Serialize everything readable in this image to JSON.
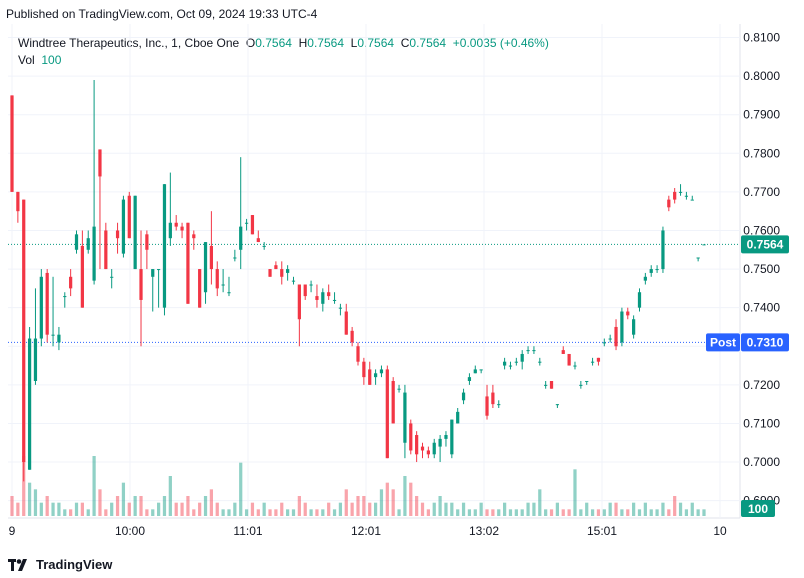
{
  "publish_line": "Published on TradingView.com, Oct 09, 2024 19:33 UTC-4",
  "legend": {
    "symbol": "Windtree Therapeutics, Inc., 1, Cboe One",
    "o_label": "O",
    "o_value": "0.7564",
    "h_label": "H",
    "h_value": "0.7564",
    "l_label": "L",
    "l_value": "0.7564",
    "c_label": "C",
    "c_value": "0.7564",
    "change": "+0.0035 (+0.46%)",
    "vol_label": "Vol",
    "vol_value": "100"
  },
  "footer": {
    "brand": "TradingView"
  },
  "colors": {
    "up": "#089981",
    "down": "#f23645",
    "post": "#2962ff",
    "grid": "#f0f3fa",
    "axis_text": "#131722"
  },
  "chart_data": {
    "type": "candlestick",
    "interval": "1 minute",
    "y_axis": {
      "ticks": [
        "0.8100",
        "0.8000",
        "0.7900",
        "0.7800",
        "0.7700",
        "0.7600",
        "0.7500",
        "0.7400",
        "0.7300",
        "0.7200",
        "0.7100",
        "0.7000",
        "0.6900"
      ],
      "ylim": [
        0.6855,
        0.8135
      ]
    },
    "x_axis": {
      "ticks": [
        "9",
        "10:00",
        "11:01",
        "12:01",
        "13:02",
        "15:01",
        "10"
      ]
    },
    "price_labels": [
      {
        "label": "",
        "value": "0.7564",
        "price": 0.7564,
        "color": "#089981"
      },
      {
        "label": "Post",
        "value": "0.7310",
        "price": 0.731,
        "color": "#2962ff"
      }
    ],
    "volume_label": "100",
    "candles": [
      {
        "o": 0.795,
        "h": 0.795,
        "l": 0.77,
        "c": 0.77
      },
      {
        "o": 0.77,
        "h": 0.77,
        "l": 0.762,
        "c": 0.765
      },
      {
        "o": 0.768,
        "h": 0.768,
        "l": 0.695,
        "c": 0.7
      },
      {
        "o": 0.698,
        "h": 0.735,
        "l": 0.698,
        "c": 0.732
      },
      {
        "o": 0.721,
        "h": 0.745,
        "l": 0.72,
        "c": 0.732
      },
      {
        "o": 0.732,
        "h": 0.75,
        "l": 0.73,
        "c": 0.748
      },
      {
        "o": 0.749,
        "h": 0.75,
        "l": 0.731,
        "c": 0.733
      },
      {
        "o": 0.733,
        "h": 0.748,
        "l": 0.73,
        "c": 0.733
      },
      {
        "o": 0.731,
        "h": 0.735,
        "l": 0.729,
        "c": 0.733
      },
      {
        "o": 0.743,
        "h": 0.744,
        "l": 0.74,
        "c": 0.743
      },
      {
        "o": 0.748,
        "h": 0.75,
        "l": 0.743,
        "c": 0.745
      },
      {
        "o": 0.755,
        "h": 0.76,
        "l": 0.754,
        "c": 0.759
      },
      {
        "o": 0.756,
        "h": 0.76,
        "l": 0.74,
        "c": 0.74
      },
      {
        "o": 0.755,
        "h": 0.76,
        "l": 0.754,
        "c": 0.758
      },
      {
        "o": 0.747,
        "h": 0.799,
        "l": 0.746,
        "c": 0.761
      },
      {
        "o": 0.781,
        "h": 0.781,
        "l": 0.75,
        "c": 0.774
      },
      {
        "o": 0.76,
        "h": 0.762,
        "l": 0.75,
        "c": 0.75
      },
      {
        "o": 0.748,
        "h": 0.75,
        "l": 0.745,
        "c": 0.748
      },
      {
        "o": 0.76,
        "h": 0.762,
        "l": 0.754,
        "c": 0.758
      },
      {
        "o": 0.754,
        "h": 0.769,
        "l": 0.753,
        "c": 0.768
      },
      {
        "o": 0.769,
        "h": 0.77,
        "l": 0.758,
        "c": 0.758
      },
      {
        "o": 0.75,
        "h": 0.769,
        "l": 0.75,
        "c": 0.769
      },
      {
        "o": 0.75,
        "h": 0.76,
        "l": 0.73,
        "c": 0.742
      },
      {
        "o": 0.759,
        "h": 0.76,
        "l": 0.75,
        "c": 0.755
      },
      {
        "o": 0.748,
        "h": 0.75,
        "l": 0.739,
        "c": 0.75
      },
      {
        "o": 0.75,
        "h": 0.75,
        "l": 0.74,
        "c": 0.75
      },
      {
        "o": 0.74,
        "h": 0.772,
        "l": 0.738,
        "c": 0.772
      },
      {
        "o": 0.758,
        "h": 0.775,
        "l": 0.756,
        "c": 0.762
      },
      {
        "o": 0.762,
        "h": 0.764,
        "l": 0.76,
        "c": 0.761
      },
      {
        "o": 0.761,
        "h": 0.762,
        "l": 0.758,
        "c": 0.76
      },
      {
        "o": 0.762,
        "h": 0.762,
        "l": 0.741,
        "c": 0.741
      },
      {
        "o": 0.759,
        "h": 0.76,
        "l": 0.755,
        "c": 0.758
      },
      {
        "o": 0.75,
        "h": 0.75,
        "l": 0.74,
        "c": 0.74
      },
      {
        "o": 0.744,
        "h": 0.757,
        "l": 0.741,
        "c": 0.757
      },
      {
        "o": 0.756,
        "h": 0.765,
        "l": 0.746,
        "c": 0.75
      },
      {
        "o": 0.75,
        "h": 0.752,
        "l": 0.743,
        "c": 0.745
      },
      {
        "o": 0.746,
        "h": 0.75,
        "l": 0.744,
        "c": 0.746
      },
      {
        "o": 0.744,
        "h": 0.748,
        "l": 0.743,
        "c": 0.744
      },
      {
        "o": 0.753,
        "h": 0.755,
        "l": 0.752,
        "c": 0.753
      },
      {
        "o": 0.755,
        "h": 0.779,
        "l": 0.75,
        "c": 0.761
      },
      {
        "o": 0.762,
        "h": 0.763,
        "l": 0.76,
        "c": 0.762
      },
      {
        "o": 0.764,
        "h": 0.764,
        "l": 0.759,
        "c": 0.759
      },
      {
        "o": 0.758,
        "h": 0.76,
        "l": 0.757,
        "c": 0.757
      },
      {
        "o": 0.756,
        "h": 0.757,
        "l": 0.755,
        "c": 0.756
      },
      {
        "o": 0.75,
        "h": 0.75,
        "l": 0.748,
        "c": 0.748
      },
      {
        "o": 0.751,
        "h": 0.752,
        "l": 0.75,
        "c": 0.75
      },
      {
        "o": 0.75,
        "h": 0.752,
        "l": 0.746,
        "c": 0.748
      },
      {
        "o": 0.749,
        "h": 0.751,
        "l": 0.747,
        "c": 0.75
      },
      {
        "o": 0.747,
        "h": 0.748,
        "l": 0.746,
        "c": 0.747
      },
      {
        "o": 0.746,
        "h": 0.746,
        "l": 0.73,
        "c": 0.737
      },
      {
        "o": 0.746,
        "h": 0.746,
        "l": 0.742,
        "c": 0.743
      },
      {
        "o": 0.746,
        "h": 0.747,
        "l": 0.744,
        "c": 0.746
      },
      {
        "o": 0.743,
        "h": 0.746,
        "l": 0.74,
        "c": 0.742
      },
      {
        "o": 0.741,
        "h": 0.745,
        "l": 0.739,
        "c": 0.744
      },
      {
        "o": 0.744,
        "h": 0.746,
        "l": 0.742,
        "c": 0.743
      },
      {
        "o": 0.742,
        "h": 0.744,
        "l": 0.741,
        "c": 0.742
      },
      {
        "o": 0.74,
        "h": 0.741,
        "l": 0.738,
        "c": 0.74
      },
      {
        "o": 0.739,
        "h": 0.741,
        "l": 0.733,
        "c": 0.733
      },
      {
        "o": 0.734,
        "h": 0.735,
        "l": 0.73,
        "c": 0.731
      },
      {
        "o": 0.73,
        "h": 0.731,
        "l": 0.725,
        "c": 0.726
      },
      {
        "o": 0.726,
        "h": 0.727,
        "l": 0.72,
        "c": 0.722
      },
      {
        "o": 0.724,
        "h": 0.726,
        "l": 0.72,
        "c": 0.72
      },
      {
        "o": 0.722,
        "h": 0.724,
        "l": 0.72,
        "c": 0.723
      },
      {
        "o": 0.723,
        "h": 0.725,
        "l": 0.722,
        "c": 0.724
      },
      {
        "o": 0.724,
        "h": 0.725,
        "l": 0.701,
        "c": 0.701
      },
      {
        "o": 0.721,
        "h": 0.722,
        "l": 0.71,
        "c": 0.71
      },
      {
        "o": 0.719,
        "h": 0.72,
        "l": 0.718,
        "c": 0.719
      },
      {
        "o": 0.705,
        "h": 0.72,
        "l": 0.701,
        "c": 0.718
      },
      {
        "o": 0.71,
        "h": 0.711,
        "l": 0.702,
        "c": 0.703
      },
      {
        "o": 0.707,
        "h": 0.708,
        "l": 0.7,
        "c": 0.702
      },
      {
        "o": 0.704,
        "h": 0.705,
        "l": 0.701,
        "c": 0.703
      },
      {
        "o": 0.703,
        "h": 0.704,
        "l": 0.701,
        "c": 0.702
      },
      {
        "o": 0.702,
        "h": 0.706,
        "l": 0.701,
        "c": 0.705
      },
      {
        "o": 0.704,
        "h": 0.707,
        "l": 0.7,
        "c": 0.706
      },
      {
        "o": 0.706,
        "h": 0.708,
        "l": 0.704,
        "c": 0.707
      },
      {
        "o": 0.702,
        "h": 0.711,
        "l": 0.701,
        "c": 0.711
      },
      {
        "o": 0.71,
        "h": 0.714,
        "l": 0.71,
        "c": 0.713
      },
      {
        "o": 0.716,
        "h": 0.719,
        "l": 0.715,
        "c": 0.718
      },
      {
        "o": 0.721,
        "h": 0.723,
        "l": 0.72,
        "c": 0.722
      },
      {
        "o": 0.723,
        "h": 0.725,
        "l": 0.723,
        "c": 0.724
      },
      {
        "o": 0.724,
        "h": 0.724,
        "l": 0.723,
        "c": 0.724
      },
      {
        "o": 0.717,
        "h": 0.72,
        "l": 0.711,
        "c": 0.712
      },
      {
        "o": 0.718,
        "h": 0.72,
        "l": 0.714,
        "c": 0.715
      },
      {
        "o": 0.715,
        "h": 0.716,
        "l": 0.714,
        "c": 0.715
      },
      {
        "o": 0.725,
        "h": 0.727,
        "l": 0.724,
        "c": 0.726
      },
      {
        "o": 0.725,
        "h": 0.726,
        "l": 0.724,
        "c": 0.725
      },
      {
        "o": 0.726,
        "h": 0.727,
        "l": 0.725,
        "c": 0.726
      },
      {
        "o": 0.726,
        "h": 0.729,
        "l": 0.724,
        "c": 0.728
      },
      {
        "o": 0.729,
        "h": 0.73,
        "l": 0.728,
        "c": 0.729
      },
      {
        "o": 0.729,
        "h": 0.73,
        "l": 0.728,
        "c": 0.729
      },
      {
        "o": 0.726,
        "h": 0.727,
        "l": 0.725,
        "c": 0.726
      },
      {
        "o": 0.72,
        "h": 0.721,
        "l": 0.719,
        "c": 0.72
      },
      {
        "o": 0.721,
        "h": 0.721,
        "l": 0.719,
        "c": 0.719
      },
      {
        "o": 0.715,
        "h": 0.715,
        "l": 0.714,
        "c": 0.715
      },
      {
        "o": 0.729,
        "h": 0.73,
        "l": 0.728,
        "c": 0.728
      },
      {
        "o": 0.728,
        "h": 0.728,
        "l": 0.725,
        "c": 0.725
      },
      {
        "o": 0.725,
        "h": 0.726,
        "l": 0.724,
        "c": 0.725
      },
      {
        "o": 0.72,
        "h": 0.721,
        "l": 0.719,
        "c": 0.72
      },
      {
        "o": 0.721,
        "h": 0.721,
        "l": 0.72,
        "c": 0.721
      },
      {
        "o": 0.726,
        "h": 0.727,
        "l": 0.725,
        "c": 0.726
      },
      {
        "o": 0.727,
        "h": 0.727,
        "l": 0.725,
        "c": 0.726
      },
      {
        "o": 0.731,
        "h": 0.732,
        "l": 0.73,
        "c": 0.731
      },
      {
        "o": 0.732,
        "h": 0.733,
        "l": 0.731,
        "c": 0.732
      },
      {
        "o": 0.735,
        "h": 0.737,
        "l": 0.729,
        "c": 0.73
      },
      {
        "o": 0.731,
        "h": 0.74,
        "l": 0.73,
        "c": 0.739
      },
      {
        "o": 0.739,
        "h": 0.74,
        "l": 0.737,
        "c": 0.738
      },
      {
        "o": 0.733,
        "h": 0.738,
        "l": 0.732,
        "c": 0.737
      },
      {
        "o": 0.74,
        "h": 0.745,
        "l": 0.739,
        "c": 0.744
      },
      {
        "o": 0.747,
        "h": 0.749,
        "l": 0.746,
        "c": 0.748
      },
      {
        "o": 0.749,
        "h": 0.751,
        "l": 0.748,
        "c": 0.75
      },
      {
        "o": 0.75,
        "h": 0.751,
        "l": 0.749,
        "c": 0.75
      },
      {
        "o": 0.75,
        "h": 0.761,
        "l": 0.749,
        "c": 0.76
      },
      {
        "o": 0.768,
        "h": 0.769,
        "l": 0.765,
        "c": 0.766
      },
      {
        "o": 0.77,
        "h": 0.771,
        "l": 0.767,
        "c": 0.768
      },
      {
        "o": 0.77,
        "h": 0.772,
        "l": 0.769,
        "c": 0.77
      },
      {
        "o": 0.769,
        "h": 0.77,
        "l": 0.768,
        "c": 0.769
      },
      {
        "o": 0.768,
        "h": 0.769,
        "l": 0.768,
        "c": 0.768
      },
      {
        "o": 0.753,
        "h": 0.753,
        "l": 0.752,
        "c": 0.753
      },
      {
        "o": 0.7564,
        "h": 0.7564,
        "l": 0.7564,
        "c": 0.7564
      }
    ],
    "volumes": [
      3,
      2,
      9,
      5,
      4,
      2,
      3,
      2,
      2,
      1,
      1,
      2,
      2,
      1,
      9,
      4,
      1,
      2,
      3,
      5,
      2,
      3,
      3,
      1,
      1,
      2,
      3,
      6,
      2,
      2,
      3,
      1,
      2,
      3,
      4,
      2,
      1,
      1,
      2,
      8,
      1,
      2,
      1,
      2,
      1,
      1,
      2,
      1,
      1,
      3,
      2,
      1,
      1,
      1,
      2,
      1,
      2,
      4,
      2,
      3,
      3,
      2,
      2,
      4,
      5,
      4,
      1,
      6,
      5,
      3,
      2,
      1,
      2,
      3,
      2,
      2,
      1,
      2,
      1,
      1,
      2,
      1,
      1,
      1,
      2,
      1,
      1,
      1,
      2,
      2,
      4,
      1,
      1,
      2,
      1,
      1,
      7,
      1,
      2,
      1,
      1,
      1,
      2,
      2,
      1,
      1,
      2,
      1,
      2,
      1,
      1,
      2,
      1,
      3,
      2,
      1,
      2,
      1,
      1,
      1,
      1
    ]
  }
}
